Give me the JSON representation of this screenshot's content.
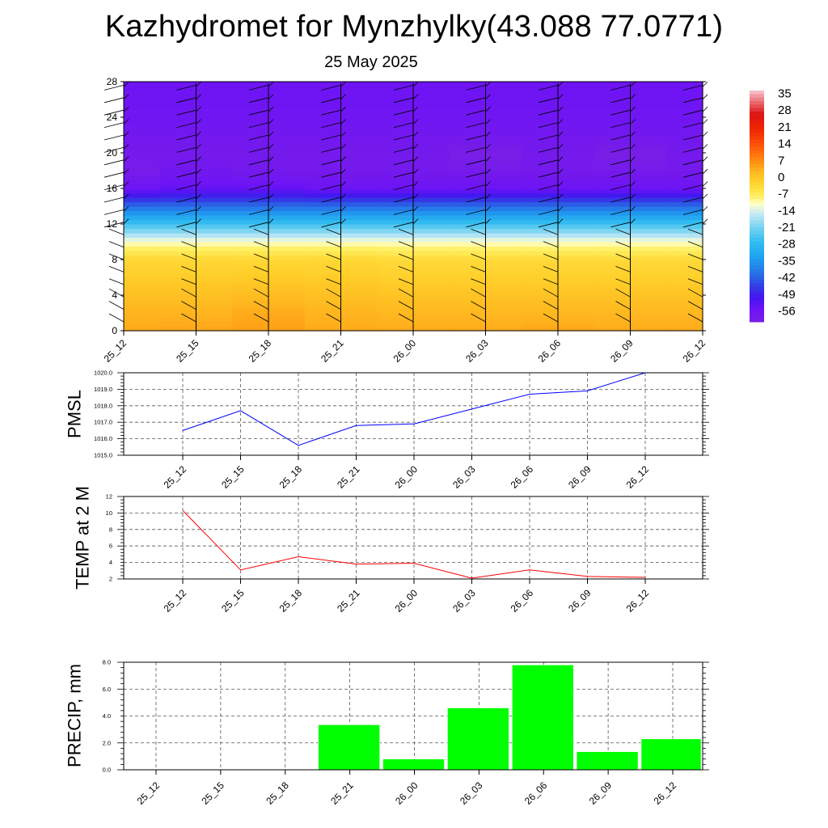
{
  "title": "Kazhydromet for Mynzhylky(43.088 77.0771)",
  "subtitle": "25 May 2025",
  "time_labels": [
    "25_12",
    "25_15",
    "25_18",
    "25_21",
    "26_00",
    "26_03",
    "26_06",
    "26_09",
    "26_12"
  ],
  "colors": {
    "pmsl_line": "#0000ff",
    "temp_line": "#ff0000",
    "precip_bar": "#00ff00",
    "barb": "#000000"
  },
  "chart_data": [
    {
      "type": "heatmap",
      "name": "vertical-cross-section",
      "x": [
        "25_12",
        "25_15",
        "25_18",
        "25_21",
        "26_00",
        "26_03",
        "26_06",
        "26_09",
        "26_12"
      ],
      "y_ticks": [
        0,
        4,
        8,
        12,
        16,
        20,
        24,
        28
      ],
      "ylim": [
        0,
        28
      ],
      "colorbar": {
        "labels": [
          "35",
          "28",
          "21",
          "14",
          "7",
          "0",
          "-7",
          "-14",
          "-21",
          "-28",
          "-35",
          "-42",
          "-49",
          "-56"
        ],
        "range": [
          -60,
          38
        ]
      },
      "levels": [
        {
          "y": 0,
          "values": [
            5,
            5.5,
            6,
            5,
            5,
            5,
            5.5,
            5,
            5
          ]
        },
        {
          "y": 2,
          "values": [
            4,
            4,
            5,
            4,
            3.5,
            3.5,
            3.5,
            3.5,
            3.5
          ]
        },
        {
          "y": 5,
          "values": [
            1,
            1,
            1.5,
            1,
            0.5,
            0.5,
            0.5,
            0.5,
            0.5
          ]
        },
        {
          "y": 8,
          "values": [
            -2,
            -2,
            -2,
            -2,
            -2.5,
            -2.5,
            -2.5,
            -2.5,
            -2.5
          ]
        },
        {
          "y": 10,
          "values": [
            -10,
            -10,
            -10,
            -10,
            -10,
            -10,
            -10,
            -10,
            -10
          ]
        },
        {
          "y": 12,
          "values": [
            -25,
            -25,
            -25,
            -25,
            -25,
            -25,
            -25,
            -25,
            -25
          ]
        },
        {
          "y": 14,
          "values": [
            -40,
            -40,
            -40,
            -40,
            -40,
            -40,
            -40,
            -40,
            -40
          ]
        },
        {
          "y": 16,
          "values": [
            -55,
            -54,
            -54,
            -55,
            -55,
            -55,
            -55,
            -55,
            -55
          ]
        },
        {
          "y": 18,
          "values": [
            -59,
            -57,
            -58,
            -58,
            -58,
            -58,
            -58,
            -58,
            -58
          ]
        },
        {
          "y": 20,
          "values": [
            -58,
            -58,
            -58,
            -58,
            -58,
            -60,
            -58,
            -60,
            -58
          ]
        },
        {
          "y": 22,
          "values": [
            -57,
            -57,
            -57,
            -57,
            -57,
            -57,
            -57,
            -57,
            -57
          ]
        },
        {
          "y": 24,
          "values": [
            -56,
            -56,
            -56,
            -56,
            -56,
            -56,
            -56,
            -56,
            -56
          ]
        },
        {
          "y": 28,
          "values": [
            -55,
            -55,
            -55,
            -55,
            -55,
            -55,
            -55,
            -55,
            -55
          ]
        }
      ]
    },
    {
      "type": "line",
      "name": "pmsl",
      "ylabel": "PMSL",
      "x": [
        "25_12",
        "25_15",
        "25_18",
        "25_21",
        "26_00",
        "26_03",
        "26_06",
        "26_09",
        "26_12"
      ],
      "values": [
        1016.5,
        1017.7,
        1015.6,
        1016.8,
        1016.9,
        1017.8,
        1018.7,
        1018.9,
        1020.0
      ],
      "ylim": [
        1015.0,
        1020.0
      ],
      "y_ticks": [
        "1015.0",
        "1016.0",
        "1017.0",
        "1018.0",
        "1019.0",
        "1020.0"
      ],
      "grid": true
    },
    {
      "type": "line",
      "name": "temp",
      "ylabel": "TEMP at 2 M",
      "x": [
        "25_12",
        "25_15",
        "25_18",
        "25_21",
        "26_00",
        "26_03",
        "26_06",
        "26_09",
        "26_12"
      ],
      "values": [
        10.3,
        3.1,
        4.7,
        3.8,
        3.9,
        2.1,
        3.1,
        2.3,
        2.2
      ],
      "ylim": [
        2,
        12
      ],
      "y_ticks": [
        "2",
        "4",
        "6",
        "8",
        "10",
        "12"
      ],
      "grid": true
    },
    {
      "type": "bar",
      "name": "precip",
      "ylabel": "PRECIP, mm",
      "categories": [
        "25_12",
        "25_15",
        "25_18",
        "25_21",
        "26_00",
        "26_03",
        "26_06",
        "26_09",
        "26_12"
      ],
      "values": [
        0,
        0,
        0,
        3.35,
        0.8,
        4.6,
        7.8,
        1.35,
        2.3
      ],
      "ylim": [
        0,
        8
      ],
      "y_ticks": [
        "0.0",
        "2.0",
        "4.0",
        "6.0",
        "8.0"
      ],
      "grid": true
    }
  ]
}
